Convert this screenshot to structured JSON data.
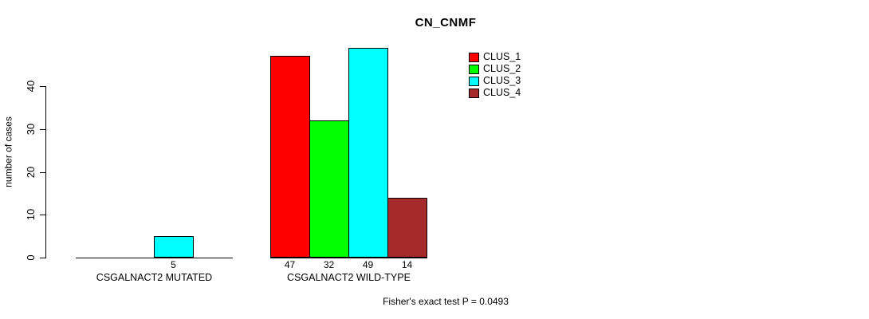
{
  "chart_data": {
    "type": "bar",
    "title": "CN_CNMF",
    "ylabel": "number of cases",
    "xlabel": "",
    "yticks": [
      0,
      10,
      20,
      30,
      40
    ],
    "ylim": [
      0,
      49
    ],
    "grid": false,
    "legend_position": "top-right",
    "categories": [
      "CSGALNACT2 MUTATED",
      "CSGALNACT2 WILD-TYPE"
    ],
    "series": [
      {
        "name": "CLUS_1",
        "color": "#ff0000",
        "values": [
          0,
          47
        ]
      },
      {
        "name": "CLUS_2",
        "color": "#00ff00",
        "values": [
          0,
          32
        ]
      },
      {
        "name": "CLUS_3",
        "color": "#00ffff",
        "values": [
          5,
          49
        ]
      },
      {
        "name": "CLUS_4",
        "color": "#a52a2a",
        "values": [
          0,
          14
        ]
      }
    ],
    "bar_value_labels": [
      [
        "",
        "",
        "5",
        ""
      ],
      [
        "47",
        "32",
        "49",
        "14"
      ]
    ],
    "annotation": "Fisher's exact test P = 0.0493"
  }
}
